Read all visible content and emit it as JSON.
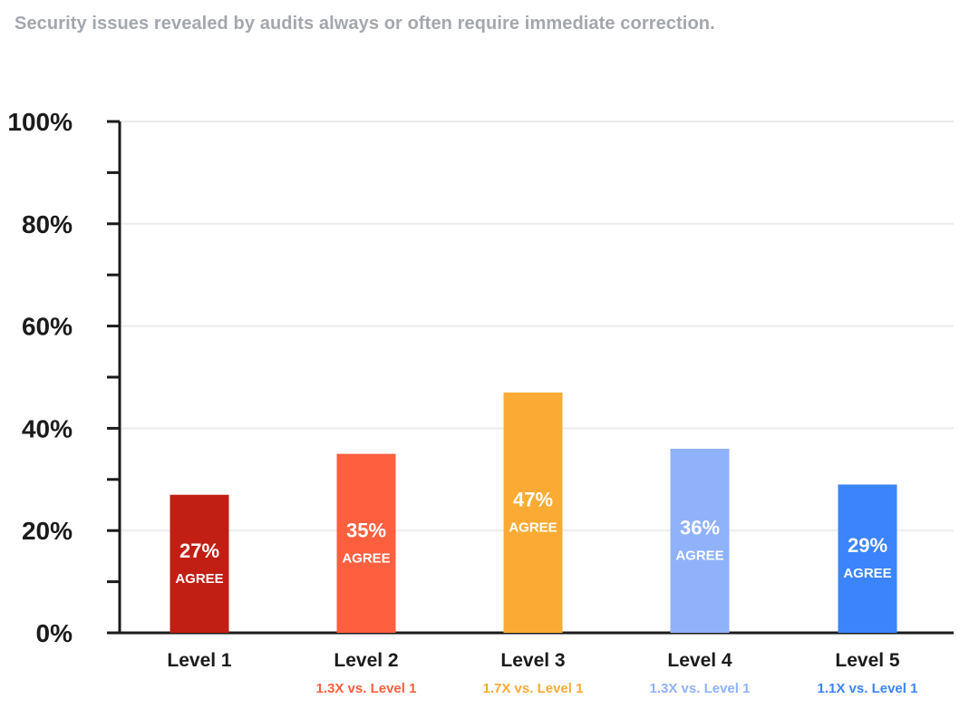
{
  "subtitle": "Security issues revealed by audits always or often require immediate correction.",
  "chart_data": {
    "type": "bar",
    "title": "",
    "subtitle": "Security issues revealed by audits always or often require immediate correction.",
    "xlabel": "",
    "ylabel": "",
    "ylim": [
      0,
      100
    ],
    "yticks": [
      "0%",
      "20%",
      "40%",
      "60%",
      "80%",
      "100%"
    ],
    "grid": true,
    "categories": [
      "Level 1",
      "Level 2",
      "Level 3",
      "Level 4",
      "Level 5"
    ],
    "values": [
      27,
      35,
      47,
      36,
      29
    ],
    "bar_labels": [
      "27%",
      "35%",
      "47%",
      "36%",
      "29%"
    ],
    "bar_sublabel": "AGREE",
    "comparisons": [
      "",
      "1.3X vs. Level 1",
      "1.7X vs. Level 1",
      "1.3X vs. Level 1",
      "1.1X vs. Level 1"
    ],
    "colors": [
      "#c21f14",
      "#fd5f3f",
      "#fbab34",
      "#8fb2fb",
      "#3b84fb"
    ]
  }
}
